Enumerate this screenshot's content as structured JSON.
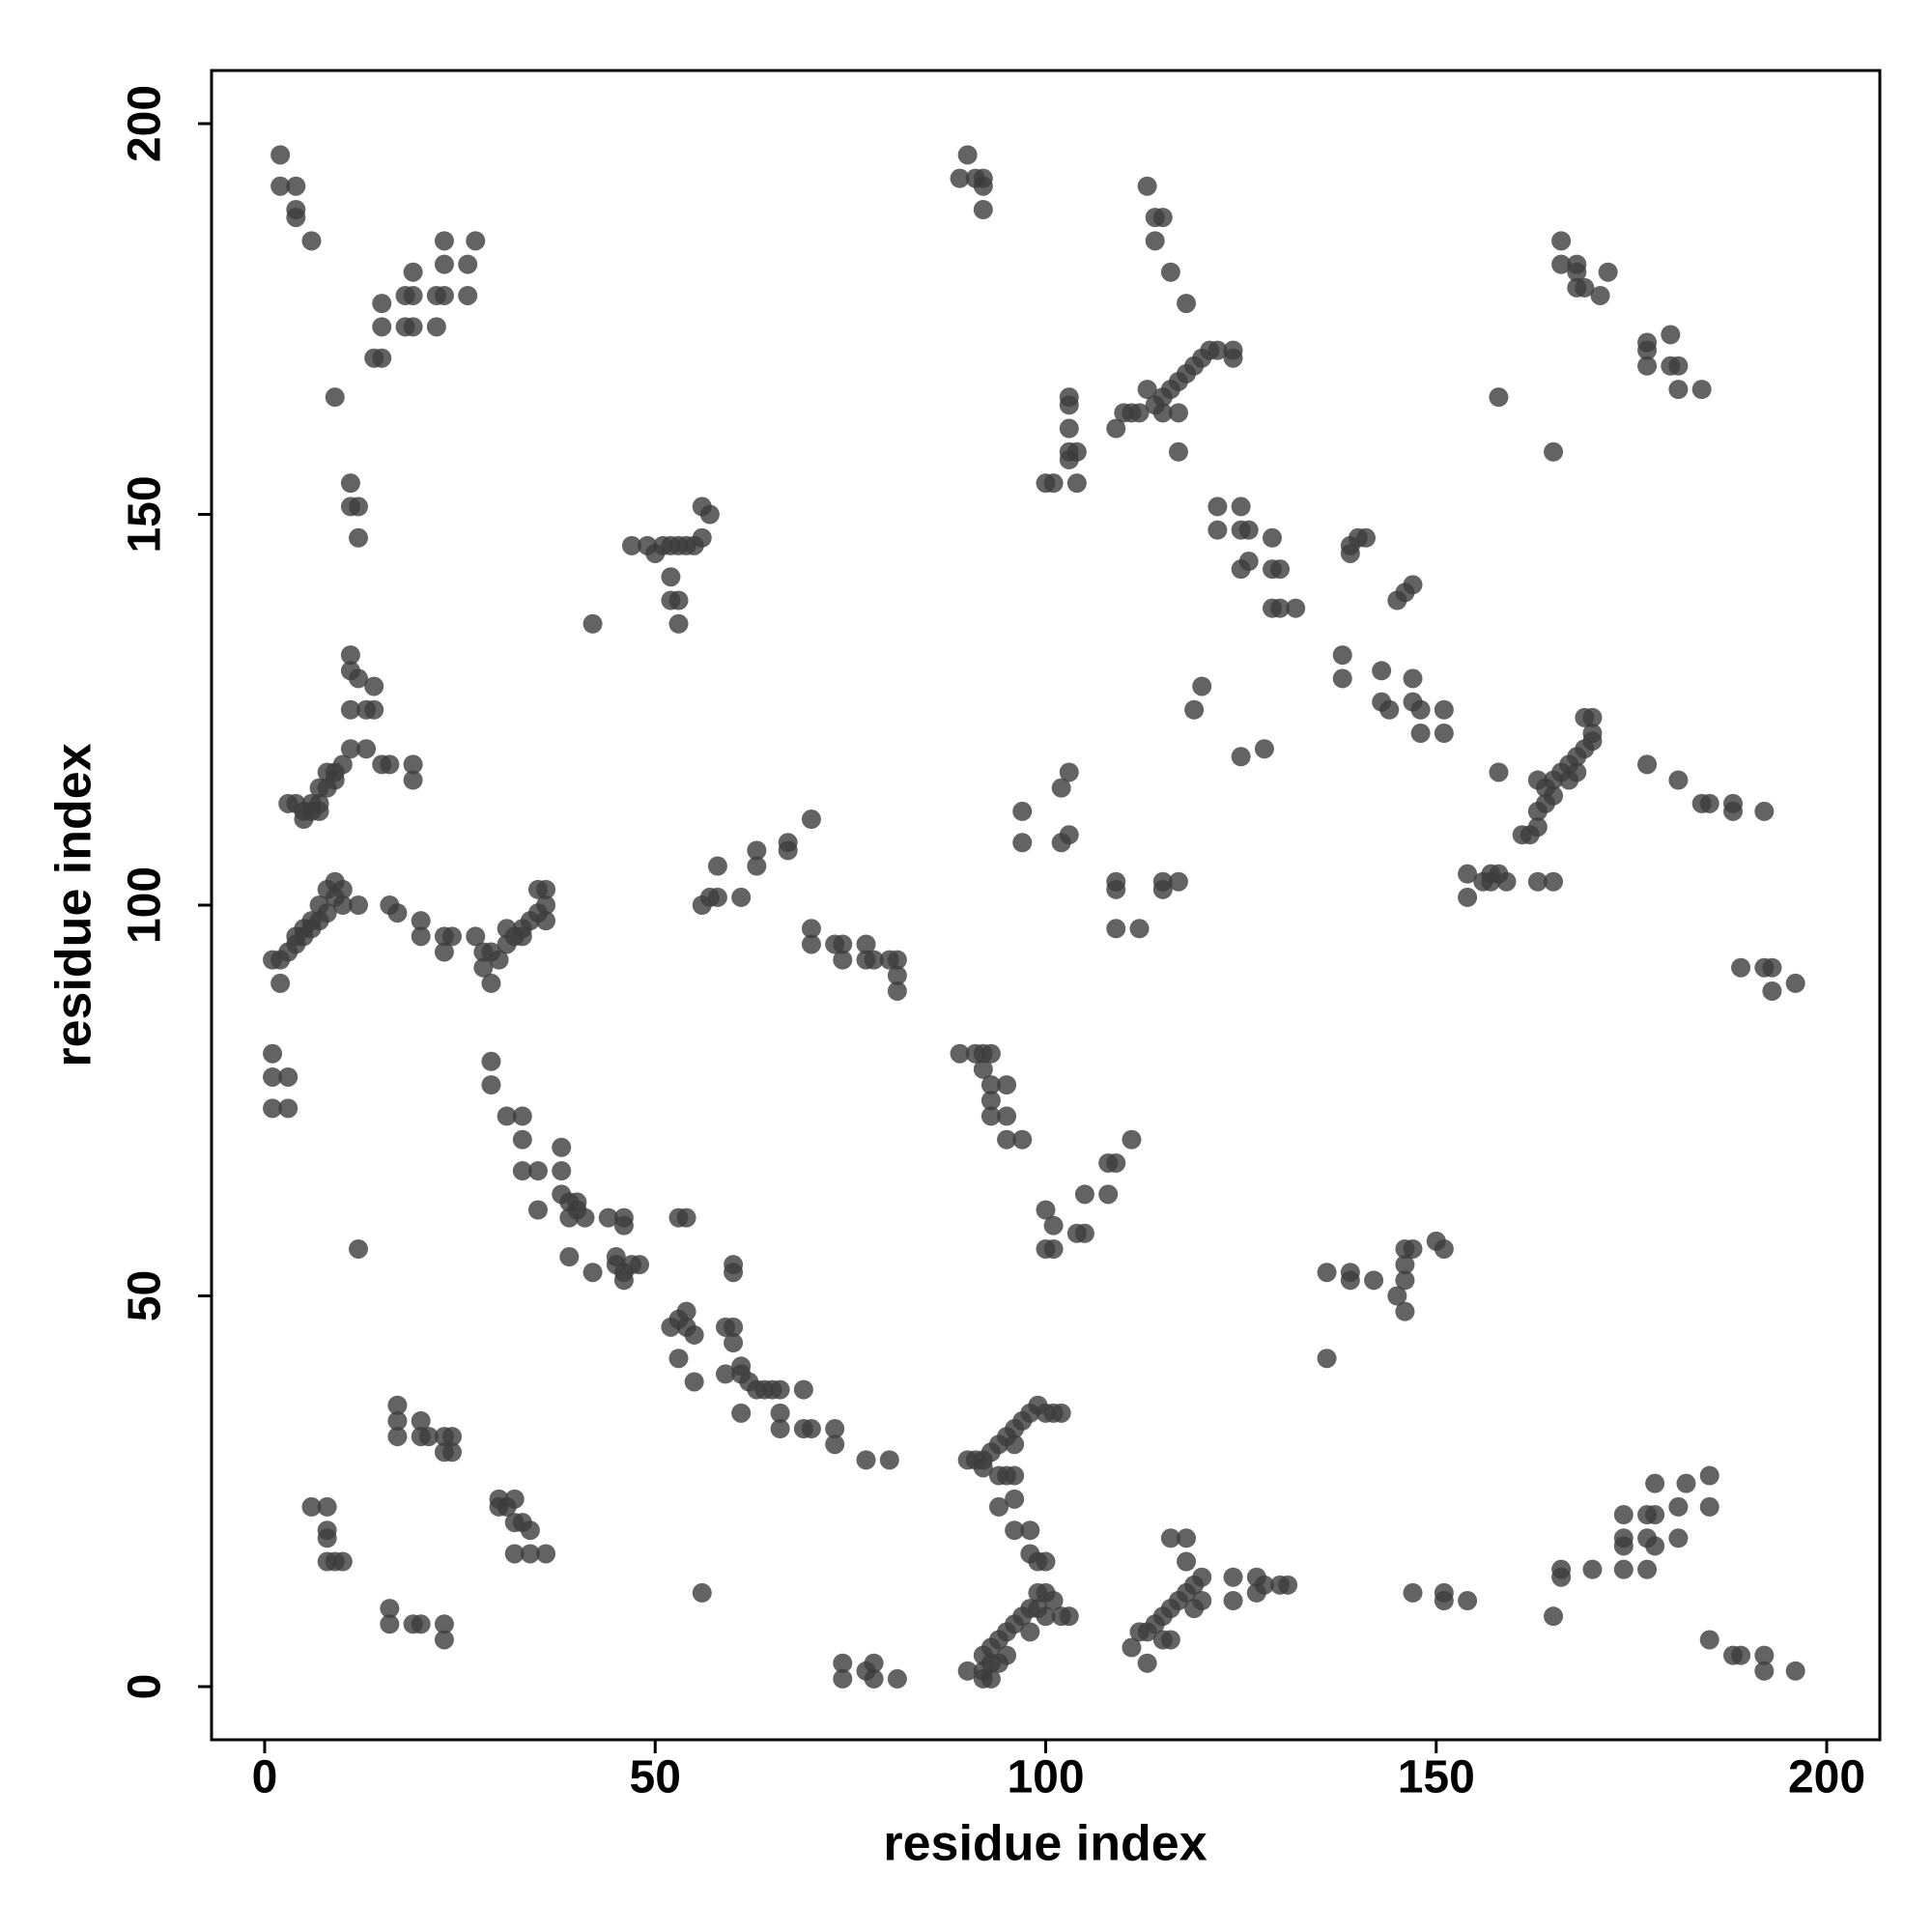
{
  "chart_data": {
    "type": "scatter",
    "x_label": "residue index",
    "y_label": "residue index",
    "x": [
      2,
      2,
      4,
      4,
      4,
      6,
      9,
      11,
      11,
      12,
      12,
      14,
      15,
      15,
      15,
      18,
      19,
      18,
      19,
      19,
      22,
      22,
      23,
      23,
      23,
      26,
      26,
      27,
      11,
      11,
      12,
      11,
      13,
      14,
      14,
      11,
      13,
      15,
      16,
      19,
      19,
      3,
      4,
      5,
      6,
      7,
      7,
      8,
      8,
      9,
      10,
      5,
      6,
      9,
      7,
      1,
      2,
      3,
      4,
      5,
      6,
      7,
      8,
      9,
      10,
      9,
      8,
      7,
      6,
      5,
      4,
      2,
      12,
      10,
      16,
      17,
      20,
      20,
      23,
      23,
      24,
      27,
      28,
      28,
      29,
      30,
      31,
      32,
      33,
      34,
      35,
      36,
      36,
      35,
      36,
      29,
      31,
      33,
      1,
      1,
      3,
      3,
      1,
      12,
      29,
      29,
      31,
      33,
      33,
      33,
      35,
      38,
      38,
      38,
      39,
      40,
      41,
      40,
      39,
      35,
      39,
      42,
      44,
      46,
      46,
      45,
      46,
      47,
      48,
      45,
      46,
      42,
      53,
      54,
      52,
      53,
      54,
      54,
      55,
      53,
      55,
      60,
      60,
      59,
      60,
      60,
      59,
      61,
      61,
      62,
      63,
      64,
      65,
      66,
      66,
      66,
      69,
      69,
      70,
      73,
      73,
      77,
      80,
      61,
      74,
      74,
      78,
      78,
      81,
      77,
      56,
      47,
      49,
      50,
      51,
      52,
      53,
      54,
      55,
      56,
      56,
      57,
      52,
      53,
      52,
      53,
      56,
      57,
      58,
      58,
      61,
      63,
      63,
      67,
      67,
      70,
      70,
      70,
      73,
      74,
      77,
      77,
      78,
      80,
      81,
      81,
      81,
      74,
      89,
      90,
      91,
      92,
      92,
      92,
      89,
      91,
      92,
      93,
      92,
      93,
      93,
      95,
      93,
      95,
      95,
      97,
      97,
      97,
      100,
      101,
      101,
      100,
      104,
      105,
      105,
      108,
      108,
      109,
      111,
      90,
      92,
      92,
      93,
      94,
      95,
      96,
      97,
      98,
      99,
      99,
      100,
      101,
      102,
      103,
      100,
      98,
      95,
      93,
      94,
      92,
      93,
      90,
      91,
      92,
      93,
      94,
      95,
      96,
      97,
      98,
      99,
      100,
      101,
      102,
      94,
      95,
      96,
      96,
      94,
      96,
      98,
      98,
      99,
      100,
      96,
      92,
      100,
      101,
      103,
      103,
      103,
      103,
      104,
      104,
      103,
      109,
      110,
      111,
      112,
      114,
      115,
      116,
      117,
      118,
      119,
      120,
      121,
      122,
      124,
      124,
      115,
      113,
      117,
      117,
      118,
      116,
      114,
      114,
      113,
      115,
      102,
      103,
      102,
      103,
      109,
      109,
      109,
      112,
      115,
      117,
      115,
      120,
      119,
      111,
      112,
      113,
      114,
      115,
      116,
      117,
      118,
      119,
      120,
      120,
      118,
      118,
      116,
      115,
      113,
      116,
      119,
      124,
      124,
      127,
      127,
      128,
      130,
      131,
      122,
      125,
      122,
      125,
      126,
      125,
      126,
      129,
      129,
      130,
      129,
      130,
      132,
      125,
      128,
      138,
      138,
      143,
      143,
      144,
      147,
      147,
      148,
      148,
      151,
      151,
      139,
      140,
      141,
      139,
      145,
      146,
      147,
      136,
      139,
      139,
      142,
      145,
      146,
      146,
      146,
      147,
      146,
      150,
      151,
      136,
      147,
      151,
      151,
      154,
      166,
      166,
      168,
      168,
      169,
      171,
      168,
      172,
      177,
      177,
      180,
      180,
      181,
      184,
      177,
      181,
      158,
      165,
      154,
      154,
      157,
      157,
      159,
      163,
      165,
      156,
      158,
      158,
      161,
      162,
      163,
      163,
      164,
      165,
      166,
      167,
      168,
      169,
      170,
      170,
      170,
      169,
      163,
      165,
      168,
      164,
      167,
      177,
      181,
      184,
      185,
      188,
      188,
      192,
      189,
      192,
      193,
      193,
      196,
      165,
      166,
      166,
      174,
      174,
      174,
      177,
      178,
      178,
      177,
      178,
      181,
      181,
      182,
      185,
      185,
      170,
      174,
      177,
      185,
      188,
      189,
      192,
      192,
      196,
      6,
      8,
      8,
      8,
      8,
      9,
      10,
      17,
      17,
      17,
      20,
      20,
      21,
      23,
      24,
      24,
      23,
      16,
      16,
      19,
      20,
      23,
      23,
      30,
      31,
      32,
      32,
      33,
      34,
      32,
      34,
      36,
      30
    ],
    "values": [
      196,
      192,
      192,
      189,
      188,
      185,
      165,
      154,
      151,
      151,
      147,
      170,
      170,
      174,
      177,
      174,
      174,
      178,
      178,
      181,
      174,
      178,
      178,
      182,
      185,
      178,
      182,
      185,
      132,
      130,
      129,
      125,
      125,
      125,
      128,
      120,
      120,
      118,
      118,
      118,
      116,
      113,
      113,
      111,
      113,
      113,
      115,
      115,
      117,
      117,
      118,
      112,
      112,
      116,
      112,
      93,
      93,
      94,
      95,
      96,
      97,
      98,
      99,
      101,
      102,
      103,
      102,
      100,
      98,
      97,
      96,
      90,
      100,
      100,
      100,
      99,
      98,
      96,
      96,
      94,
      96,
      96,
      94,
      92,
      90,
      93,
      95,
      96,
      97,
      98,
      99,
      100,
      102,
      102,
      98,
      94,
      97,
      96,
      81,
      78,
      78,
      74,
      74,
      56,
      80,
      77,
      73,
      73,
      70,
      66,
      66,
      69,
      66,
      63,
      62,
      62,
      60,
      61,
      60,
      61,
      55,
      53,
      60,
      60,
      59,
      55,
      53,
      54,
      54,
      54,
      52,
      136,
      60,
      60,
      46,
      47,
      48,
      46,
      45,
      42,
      39,
      54,
      53,
      46,
      46,
      44,
      40,
      40,
      35,
      39,
      38,
      38,
      38,
      38,
      35,
      33,
      38,
      33,
      33,
      33,
      31,
      29,
      29,
      41,
      3,
      1,
      3,
      1,
      1,
      2,
      12,
      146,
      146,
      145,
      146,
      146,
      146,
      146,
      146,
      147,
      151,
      150,
      142,
      139,
      139,
      136,
      100,
      101,
      105,
      101,
      101,
      107,
      105,
      108,
      107,
      111,
      97,
      95,
      95,
      93,
      95,
      93,
      93,
      93,
      93,
      91,
      89,
      95,
      193,
      196,
      193,
      193,
      189,
      192,
      81,
      81,
      81,
      81,
      79,
      77,
      75,
      77,
      73,
      73,
      70,
      70,
      112,
      108,
      61,
      59,
      56,
      56,
      58,
      58,
      63,
      63,
      67,
      67,
      70,
      2,
      2,
      4,
      5,
      6,
      7,
      8,
      9,
      10,
      10,
      12,
      12,
      11,
      9,
      9,
      9,
      7,
      4,
      3,
      3,
      1,
      1,
      29,
      29,
      29,
      30,
      31,
      32,
      33,
      34,
      35,
      36,
      35,
      35,
      35,
      27,
      27,
      27,
      24,
      23,
      20,
      20,
      17,
      16,
      16,
      31,
      28,
      154,
      154,
      158,
      161,
      164,
      165,
      158,
      154,
      157,
      161,
      163,
      163,
      163,
      164,
      165,
      166,
      167,
      168,
      169,
      170,
      171,
      171,
      171,
      170,
      163,
      166,
      163,
      158,
      177,
      181,
      185,
      188,
      192,
      188,
      115,
      117,
      108,
      109,
      102,
      103,
      97,
      97,
      103,
      103,
      102,
      128,
      125,
      5,
      7,
      7,
      8,
      9,
      10,
      11,
      12,
      13,
      11,
      14,
      16,
      19,
      19,
      6,
      3,
      6,
      10,
      14,
      11,
      14,
      12,
      13,
      13,
      13,
      151,
      151,
      148,
      148,
      148,
      143,
      144,
      147,
      143,
      143,
      138,
      138,
      138,
      119,
      120,
      132,
      129,
      130,
      126,
      125,
      129,
      126,
      125,
      122,
      125,
      122,
      146,
      147,
      147,
      145,
      139,
      140,
      141,
      53,
      53,
      52,
      52,
      50,
      52,
      54,
      56,
      56,
      48,
      57,
      56,
      42,
      12,
      12,
      11,
      11,
      185,
      182,
      182,
      179,
      179,
      178,
      181,
      181,
      172,
      169,
      173,
      169,
      166,
      166,
      171,
      169,
      165,
      158,
      104,
      101,
      104,
      103,
      103,
      103,
      103,
      103,
      104,
      117,
      109,
      109,
      112,
      110,
      115,
      116,
      117,
      118,
      119,
      120,
      121,
      122,
      124,
      124,
      116,
      114,
      117,
      113,
      116,
      118,
      116,
      113,
      113,
      113,
      112,
      112,
      92,
      92,
      92,
      89,
      90,
      9,
      15,
      14,
      22,
      18,
      15,
      22,
      22,
      26,
      19,
      18,
      23,
      19,
      26,
      27,
      23,
      15,
      19,
      15,
      6,
      4,
      4,
      4,
      2,
      2,
      23,
      23,
      20,
      19,
      16,
      16,
      16,
      36,
      34,
      32,
      34,
      32,
      32,
      32,
      32,
      30,
      30,
      10,
      8,
      8,
      8,
      8,
      6,
      24,
      23,
      24,
      21,
      21,
      20,
      17,
      17,
      17,
      23
    ],
    "color": "#3c3c3c",
    "opacity": 0.8,
    "xlim": [
      -6.8,
      206.8
    ],
    "ylim": [
      -6.8,
      206.8
    ],
    "xticks": [
      0,
      50,
      100,
      150,
      200
    ],
    "yticks": [
      0,
      50,
      100,
      150,
      200
    ]
  }
}
